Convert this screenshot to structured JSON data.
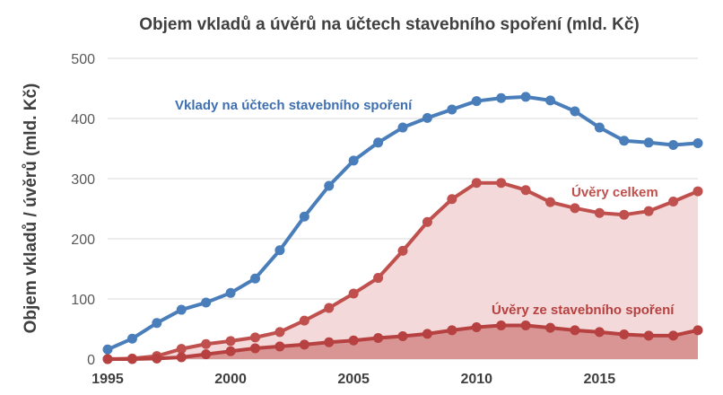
{
  "chart_data": {
    "type": "area",
    "title": "Objem vkladů a úvěrů na účtech stavebního spoření  (mld. Kč)",
    "ylabel": "Objem vkladů / úvěrů (mld. Kč)",
    "xlabel": "",
    "xlim": [
      1995,
      2019
    ],
    "ylim": [
      0,
      500
    ],
    "x_ticks": [
      "1995",
      "2000",
      "2005",
      "2010",
      "2015"
    ],
    "y_ticks": [
      "0",
      "100",
      "200",
      "300",
      "400",
      "500"
    ],
    "grid": true,
    "x": [
      1995,
      1996,
      1997,
      1998,
      1999,
      2000,
      2001,
      2002,
      2003,
      2004,
      2005,
      2006,
      2007,
      2008,
      2009,
      2010,
      2011,
      2012,
      2013,
      2014,
      2015,
      2016,
      2017,
      2018,
      2019
    ],
    "series": [
      {
        "name": "Vklady na účtech stavebního spoření",
        "color": "#4a7ebb",
        "fill": null,
        "values": [
          16,
          34,
          60,
          82,
          94,
          110,
          134,
          181,
          237,
          288,
          330,
          360,
          385,
          401,
          415,
          429,
          434,
          436,
          430,
          412,
          385,
          363,
          360,
          356,
          359
        ]
      },
      {
        "name": "Úvěry celkem",
        "color": "#c0504d",
        "fill": "#f3d9d9",
        "values": [
          0,
          1,
          5,
          17,
          25,
          30,
          36,
          45,
          64,
          85,
          109,
          135,
          180,
          228,
          266,
          293,
          293,
          281,
          261,
          251,
          243,
          240,
          246,
          262,
          279
        ]
      },
      {
        "name": "Úvěry ze stavebního spoření",
        "color": "#b64140",
        "fill": "#d99594",
        "values": [
          0,
          0,
          1,
          3,
          8,
          13,
          18,
          21,
          24,
          28,
          31,
          35,
          38,
          42,
          48,
          53,
          56,
          56,
          52,
          48,
          45,
          41,
          39,
          39,
          48
        ]
      }
    ]
  }
}
